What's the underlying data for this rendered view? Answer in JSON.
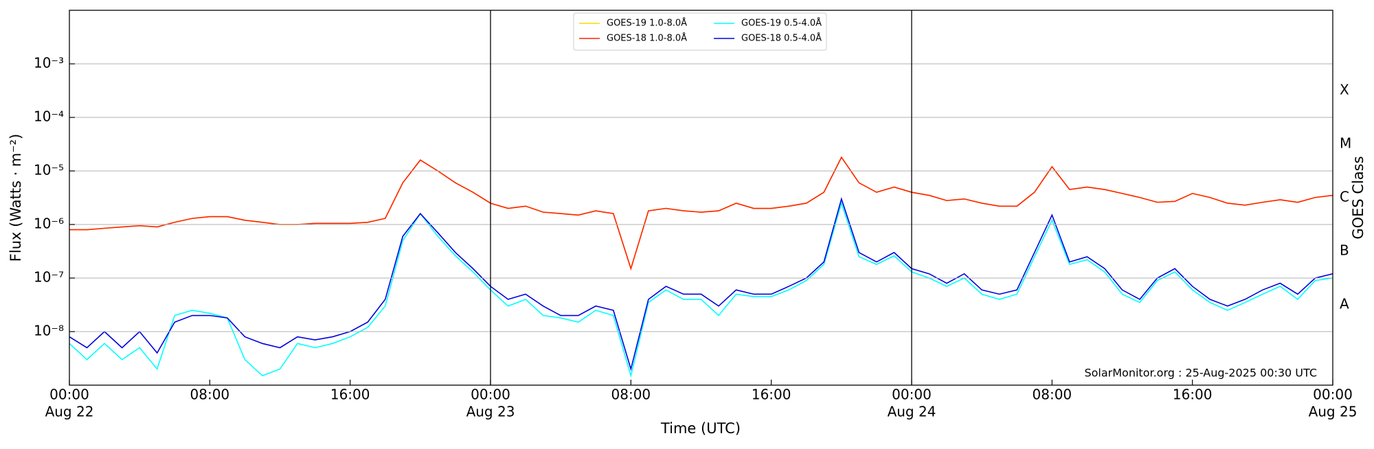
{
  "chart_data": {
    "type": "line",
    "x_label": "Time (UTC)",
    "y_label": "Flux (Watts · m⁻²)",
    "y2_label": "GOES Class",
    "watermark": "SolarMonitor.org : 25-Aug-2025 00:30 UTC",
    "log_y": true,
    "grid": true,
    "legend": "top",
    "ylim": [
      1e-09,
      0.01
    ],
    "yticks": [
      {
        "value": 1e-08,
        "label": "10⁻⁸"
      },
      {
        "value": 1e-07,
        "label": "10⁻⁷"
      },
      {
        "value": 1e-06,
        "label": "10⁻⁶"
      },
      {
        "value": 1e-05,
        "label": "10⁻⁵"
      },
      {
        "value": 0.0001,
        "label": "10⁻⁴"
      },
      {
        "value": 0.001,
        "label": "10⁻³"
      }
    ],
    "classes": [
      {
        "value": 1e-08,
        "label": "A"
      },
      {
        "value": 1e-07,
        "label": "B"
      },
      {
        "value": 1e-06,
        "label": "C"
      },
      {
        "value": 1e-05,
        "label": "M"
      },
      {
        "value": 0.0001,
        "label": "X"
      }
    ],
    "xlim": [
      "Aug 22 00:00",
      "Aug 25 00:00"
    ],
    "xticks": [
      {
        "value": "Aug 22 00:00",
        "label": "00:00",
        "date": "Aug 22"
      },
      {
        "value": "Aug 22 08:00",
        "label": "08:00"
      },
      {
        "value": "Aug 22 16:00",
        "label": "16:00"
      },
      {
        "value": "Aug 23 00:00",
        "label": "00:00",
        "date": "Aug 23"
      },
      {
        "value": "Aug 23 08:00",
        "label": "08:00"
      },
      {
        "value": "Aug 23 16:00",
        "label": "16:00"
      },
      {
        "value": "Aug 24 00:00",
        "label": "00:00",
        "date": "Aug 24"
      },
      {
        "value": "Aug 24 08:00",
        "label": "08:00"
      },
      {
        "value": "Aug 24 16:00",
        "label": "16:00"
      },
      {
        "value": "Aug 25 00:00",
        "label": "00:00",
        "date": "Aug 25"
      }
    ],
    "x": [
      "Aug 22 00:00",
      "Aug 22 01:00",
      "Aug 22 02:00",
      "Aug 22 03:00",
      "Aug 22 04:00",
      "Aug 22 05:00",
      "Aug 22 06:00",
      "Aug 22 07:00",
      "Aug 22 08:00",
      "Aug 22 09:00",
      "Aug 22 10:00",
      "Aug 22 11:00",
      "Aug 22 12:00",
      "Aug 22 13:00",
      "Aug 22 14:00",
      "Aug 22 15:00",
      "Aug 22 16:00",
      "Aug 22 17:00",
      "Aug 22 18:00",
      "Aug 22 19:00",
      "Aug 22 20:00",
      "Aug 22 21:00",
      "Aug 22 22:00",
      "Aug 22 23:00",
      "Aug 23 00:00",
      "Aug 23 01:00",
      "Aug 23 02:00",
      "Aug 23 03:00",
      "Aug 23 04:00",
      "Aug 23 05:00",
      "Aug 23 06:00",
      "Aug 23 07:00",
      "Aug 23 08:00",
      "Aug 23 09:00",
      "Aug 23 10:00",
      "Aug 23 11:00",
      "Aug 23 12:00",
      "Aug 23 13:00",
      "Aug 23 14:00",
      "Aug 23 15:00",
      "Aug 23 16:00",
      "Aug 23 17:00",
      "Aug 23 18:00",
      "Aug 23 19:00",
      "Aug 23 20:00",
      "Aug 23 21:00",
      "Aug 23 22:00",
      "Aug 23 23:00",
      "Aug 24 00:00",
      "Aug 24 01:00",
      "Aug 24 02:00",
      "Aug 24 03:00",
      "Aug 24 04:00",
      "Aug 24 05:00",
      "Aug 24 06:00",
      "Aug 24 07:00",
      "Aug 24 08:00",
      "Aug 24 09:00",
      "Aug 24 10:00",
      "Aug 24 11:00",
      "Aug 24 12:00",
      "Aug 24 13:00",
      "Aug 24 14:00",
      "Aug 24 15:00",
      "Aug 24 16:00",
      "Aug 24 17:00",
      "Aug 24 18:00",
      "Aug 24 19:00",
      "Aug 24 20:00",
      "Aug 24 21:00",
      "Aug 24 22:00",
      "Aug 24 23:00",
      "Aug 25 00:00"
    ],
    "series": [
      {
        "name": "GOES-19 1.0-8.0Å",
        "color": "#ffd700",
        "values": [
          8e-07,
          8e-07,
          8.5e-07,
          9e-07,
          9.5e-07,
          9e-07,
          1.1e-06,
          1.3e-06,
          1.4e-06,
          1.4e-06,
          1.2e-06,
          1.1e-06,
          1e-06,
          1e-06,
          1.05e-06,
          1.05e-06,
          1.05e-06,
          1.1e-06,
          1.3e-06,
          6e-06,
          1.6e-05,
          1e-05,
          6e-06,
          4e-06,
          2.5e-06,
          2e-06,
          2.2e-06,
          1.7e-06,
          1.6e-06,
          1.5e-06,
          1.8e-06,
          1.6e-06,
          1.5e-07,
          1.8e-06,
          2e-06,
          1.8e-06,
          1.7e-06,
          1.8e-06,
          2.5e-06,
          2e-06,
          2e-06,
          2.2e-06,
          2.5e-06,
          4e-06,
          1.8e-05,
          6e-06,
          4e-06,
          5e-06,
          4e-06,
          3.5e-06,
          2.8e-06,
          3e-06,
          2.5e-06,
          2.2e-06,
          2.2e-06,
          4e-06,
          1.2e-05,
          4.5e-06,
          5e-06,
          4.5e-06,
          3.8e-06,
          3.2e-06,
          2.6e-06,
          2.7e-06,
          3.8e-06,
          3.2e-06,
          2.5e-06,
          2.3e-06,
          2.6e-06,
          2.9e-06,
          2.6e-06,
          3.2e-06,
          3.5e-06
        ]
      },
      {
        "name": "GOES-18 1.0-8.0Å",
        "color": "#ff2200",
        "values": [
          8e-07,
          8e-07,
          8.5e-07,
          9e-07,
          9.5e-07,
          9e-07,
          1.1e-06,
          1.3e-06,
          1.4e-06,
          1.4e-06,
          1.2e-06,
          1.1e-06,
          1e-06,
          1e-06,
          1.05e-06,
          1.05e-06,
          1.05e-06,
          1.1e-06,
          1.3e-06,
          6e-06,
          1.6e-05,
          1e-05,
          6e-06,
          4e-06,
          2.5e-06,
          2e-06,
          2.2e-06,
          1.7e-06,
          1.6e-06,
          1.5e-06,
          1.8e-06,
          1.6e-06,
          1.5e-07,
          1.8e-06,
          2e-06,
          1.8e-06,
          1.7e-06,
          1.8e-06,
          2.5e-06,
          2e-06,
          2e-06,
          2.2e-06,
          2.5e-06,
          4e-06,
          1.8e-05,
          6e-06,
          4e-06,
          5e-06,
          4e-06,
          3.5e-06,
          2.8e-06,
          3e-06,
          2.5e-06,
          2.2e-06,
          2.2e-06,
          4e-06,
          1.2e-05,
          4.5e-06,
          5e-06,
          4.5e-06,
          3.8e-06,
          3.2e-06,
          2.6e-06,
          2.7e-06,
          3.8e-06,
          3.2e-06,
          2.5e-06,
          2.3e-06,
          2.6e-06,
          2.9e-06,
          2.6e-06,
          3.2e-06,
          3.5e-06
        ]
      },
      {
        "name": "GOES-19 0.5-4.0Å",
        "color": "#00ffff",
        "values": [
          6e-09,
          3e-09,
          6e-09,
          3e-09,
          5e-09,
          2e-09,
          2e-08,
          2.5e-08,
          2.2e-08,
          1.8e-08,
          3e-09,
          1.5e-09,
          2e-09,
          6e-09,
          5e-09,
          6e-09,
          8e-09,
          1.2e-08,
          3e-08,
          5e-07,
          1.6e-06,
          6e-07,
          2.6e-07,
          1.3e-07,
          6e-08,
          3e-08,
          4e-08,
          2e-08,
          1.8e-08,
          1.5e-08,
          2.5e-08,
          2e-08,
          1.5e-09,
          3.5e-08,
          6e-08,
          4e-08,
          4e-08,
          2e-08,
          5e-08,
          4.5e-08,
          4.5e-08,
          6e-08,
          9e-08,
          1.8e-07,
          2.5e-06,
          2.5e-07,
          1.8e-07,
          2.6e-07,
          1.3e-07,
          1e-07,
          7e-08,
          1e-07,
          5e-08,
          4e-08,
          5e-08,
          2.5e-07,
          1.2e-06,
          1.8e-07,
          2.2e-07,
          1.3e-07,
          5e-08,
          3.5e-08,
          9e-08,
          1.3e-07,
          6e-08,
          3.5e-08,
          2.5e-08,
          3.5e-08,
          5e-08,
          7e-08,
          4e-08,
          9e-08,
          1e-07
        ]
      },
      {
        "name": "GOES-18 0.5-4.0Å",
        "color": "#0000dd",
        "values": [
          8e-09,
          5e-09,
          1e-08,
          5e-09,
          1e-08,
          4e-09,
          1.5e-08,
          2e-08,
          2e-08,
          1.8e-08,
          8e-09,
          6e-09,
          5e-09,
          8e-09,
          7e-09,
          8e-09,
          1e-08,
          1.5e-08,
          4e-08,
          6e-07,
          1.6e-06,
          7e-07,
          3e-07,
          1.5e-07,
          7e-08,
          4e-08,
          5e-08,
          3e-08,
          2e-08,
          2e-08,
          3e-08,
          2.5e-08,
          2e-09,
          4e-08,
          7e-08,
          5e-08,
          5e-08,
          3e-08,
          6e-08,
          5e-08,
          5e-08,
          7e-08,
          1e-07,
          2e-07,
          3e-06,
          3e-07,
          2e-07,
          3e-07,
          1.5e-07,
          1.2e-07,
          8e-08,
          1.2e-07,
          6e-08,
          5e-08,
          6e-08,
          3e-07,
          1.5e-06,
          2e-07,
          2.5e-07,
          1.5e-07,
          6e-08,
          4e-08,
          1e-07,
          1.5e-07,
          7e-08,
          4e-08,
          3e-08,
          4e-08,
          6e-08,
          8e-08,
          5e-08,
          1e-07,
          1.2e-07
        ]
      }
    ]
  }
}
